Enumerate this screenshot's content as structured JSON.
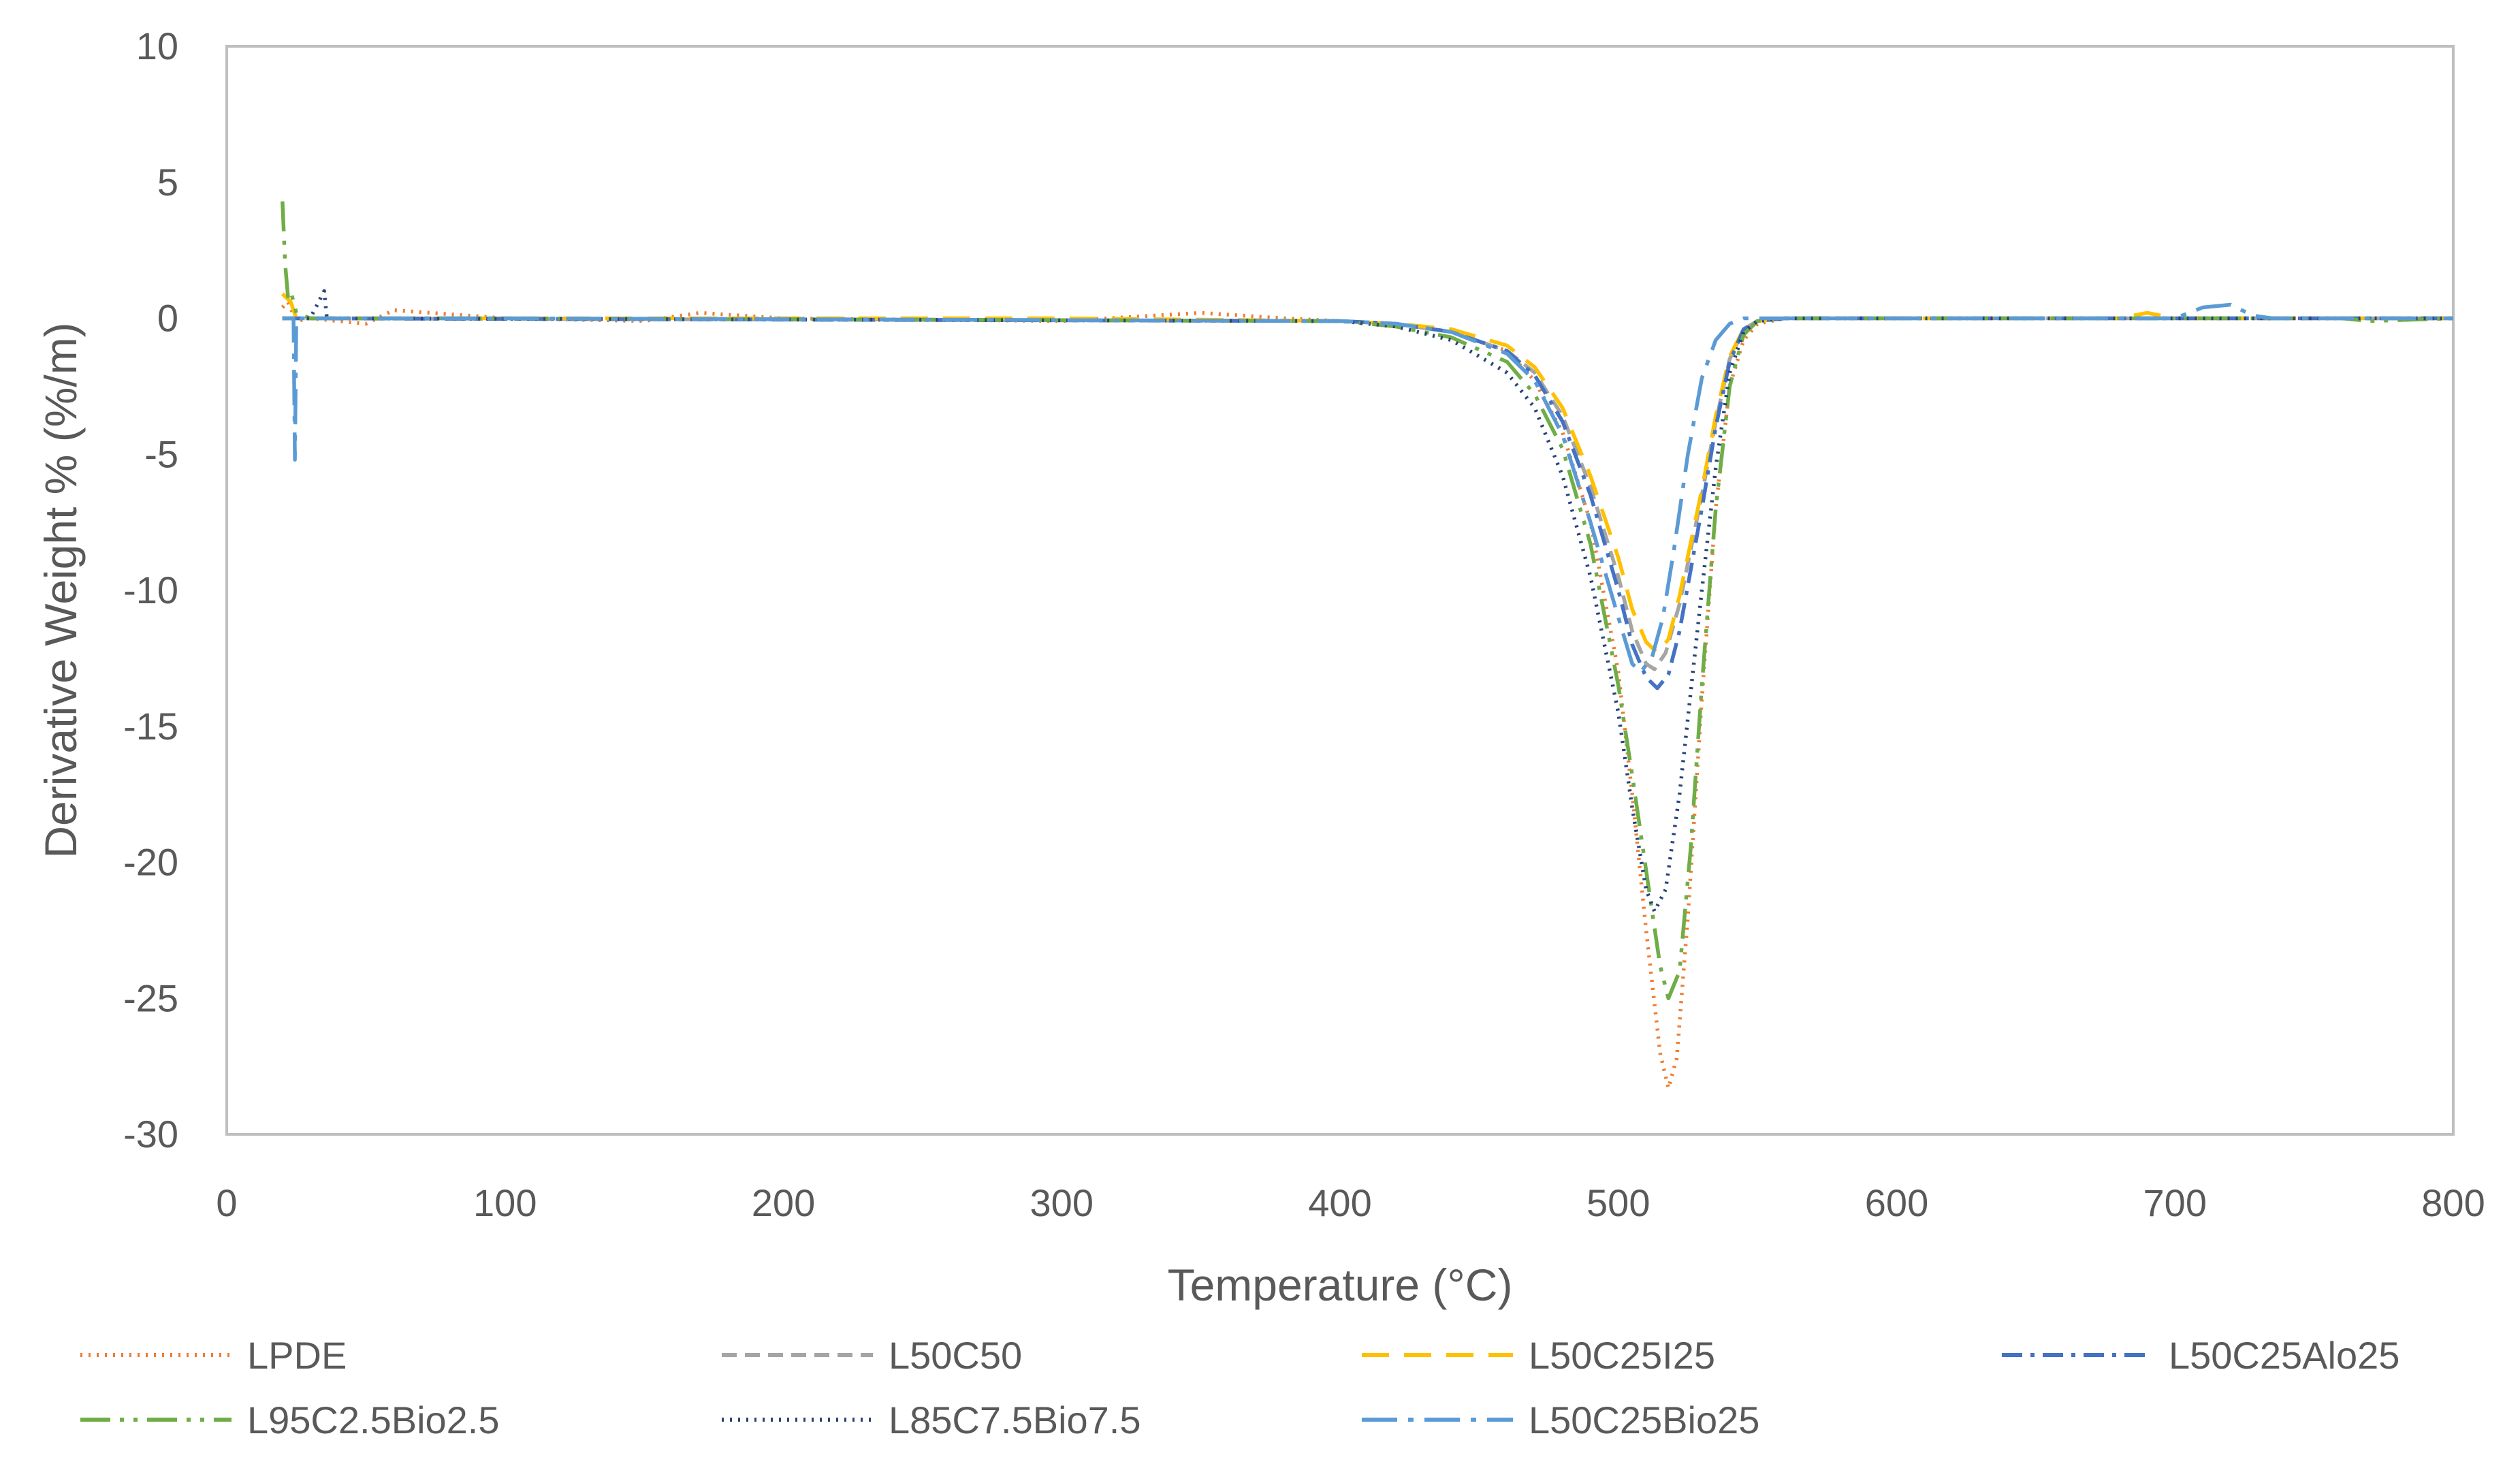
{
  "chart_data": {
    "type": "line",
    "title": "",
    "xlabel": "Temperature (°C)",
    "ylabel": "Derivative Weight % (%/m)",
    "xlim": [
      0,
      800
    ],
    "ylim": [
      -30,
      10
    ],
    "x_ticks": [
      0,
      100,
      200,
      300,
      400,
      500,
      600,
      700,
      800
    ],
    "y_ticks": [
      10,
      5,
      0,
      -5,
      -10,
      -15,
      -20,
      -25,
      -30
    ],
    "grid": false,
    "legend_position": "bottom",
    "series": [
      {
        "name": "LPDE",
        "color": "#ED7D31",
        "dash": "dotted",
        "points": [
          [
            20,
            0.4
          ],
          [
            22,
            0.6
          ],
          [
            25,
            -0.1
          ],
          [
            30,
            0
          ],
          [
            50,
            -0.2
          ],
          [
            60,
            0.3
          ],
          [
            100,
            0
          ],
          [
            150,
            -0.1
          ],
          [
            170,
            0.2
          ],
          [
            200,
            0
          ],
          [
            300,
            -0.1
          ],
          [
            350,
            0.2
          ],
          [
            380,
            0
          ],
          [
            400,
            -0.1
          ],
          [
            420,
            -0.2
          ],
          [
            440,
            -0.5
          ],
          [
            460,
            -1.2
          ],
          [
            470,
            -2.3
          ],
          [
            480,
            -4.2
          ],
          [
            490,
            -7.5
          ],
          [
            500,
            -13
          ],
          [
            505,
            -17.5
          ],
          [
            510,
            -22.5
          ],
          [
            515,
            -27
          ],
          [
            518,
            -28.3
          ],
          [
            521,
            -27.2
          ],
          [
            525,
            -22
          ],
          [
            530,
            -14
          ],
          [
            535,
            -7
          ],
          [
            540,
            -2.5
          ],
          [
            545,
            -0.8
          ],
          [
            550,
            -0.2
          ],
          [
            560,
            0
          ],
          [
            800,
            0
          ]
        ]
      },
      {
        "name": "L50C50",
        "color": "#A5A5A5",
        "dash": "dashed",
        "points": [
          [
            20,
            0
          ],
          [
            400,
            -0.1
          ],
          [
            420,
            -0.2
          ],
          [
            440,
            -0.5
          ],
          [
            460,
            -1.2
          ],
          [
            470,
            -2
          ],
          [
            480,
            -3.6
          ],
          [
            490,
            -6.2
          ],
          [
            500,
            -9.5
          ],
          [
            505,
            -11.5
          ],
          [
            510,
            -12.7
          ],
          [
            513,
            -12.9
          ],
          [
            517,
            -12.3
          ],
          [
            522,
            -10.5
          ],
          [
            530,
            -6.5
          ],
          [
            535,
            -3.8
          ],
          [
            540,
            -1.5
          ],
          [
            545,
            -0.4
          ],
          [
            550,
            -0.1
          ],
          [
            560,
            0
          ],
          [
            800,
            0
          ]
        ]
      },
      {
        "name": "L50C25I25",
        "color": "#FFC000",
        "dash": "long-dash",
        "points": [
          [
            20,
            0.9
          ],
          [
            23,
            0.6
          ],
          [
            25,
            0
          ],
          [
            100,
            0
          ],
          [
            300,
            0
          ],
          [
            400,
            -0.1
          ],
          [
            420,
            -0.2
          ],
          [
            440,
            -0.4
          ],
          [
            460,
            -1
          ],
          [
            470,
            -1.8
          ],
          [
            480,
            -3.3
          ],
          [
            490,
            -5.8
          ],
          [
            500,
            -8.8
          ],
          [
            505,
            -10.7
          ],
          [
            510,
            -11.9
          ],
          [
            514,
            -12.3
          ],
          [
            518,
            -11.8
          ],
          [
            522,
            -10.2
          ],
          [
            530,
            -6.3
          ],
          [
            535,
            -3.6
          ],
          [
            540,
            -1.4
          ],
          [
            545,
            -0.4
          ],
          [
            550,
            -0.1
          ],
          [
            560,
            0
          ],
          [
            680,
            0
          ],
          [
            690,
            0.2
          ],
          [
            700,
            0
          ],
          [
            800,
            0
          ]
        ]
      },
      {
        "name": "L50C25Alo25",
        "color": "#4472C4",
        "dash": "dash-dot",
        "points": [
          [
            20,
            0
          ],
          [
            400,
            -0.1
          ],
          [
            420,
            -0.2
          ],
          [
            440,
            -0.5
          ],
          [
            460,
            -1.2
          ],
          [
            470,
            -2.1
          ],
          [
            480,
            -3.8
          ],
          [
            490,
            -6.5
          ],
          [
            500,
            -10
          ],
          [
            505,
            -12
          ],
          [
            510,
            -13.2
          ],
          [
            514,
            -13.6
          ],
          [
            518,
            -13.1
          ],
          [
            522,
            -11.5
          ],
          [
            530,
            -7
          ],
          [
            535,
            -4
          ],
          [
            540,
            -1.6
          ],
          [
            545,
            -0.4
          ],
          [
            550,
            -0.1
          ],
          [
            560,
            0
          ],
          [
            800,
            0
          ]
        ]
      },
      {
        "name": "L95C2.5Bio2.5",
        "color": "#70AD47",
        "dash": "dash-dot-dot",
        "points": [
          [
            20,
            4.3
          ],
          [
            21,
            2
          ],
          [
            22,
            0.8
          ],
          [
            23,
            1
          ],
          [
            25,
            0.2
          ],
          [
            30,
            0
          ],
          [
            100,
            0
          ],
          [
            400,
            -0.1
          ],
          [
            420,
            -0.3
          ],
          [
            440,
            -0.7
          ],
          [
            460,
            -1.6
          ],
          [
            470,
            -2.8
          ],
          [
            480,
            -4.8
          ],
          [
            490,
            -8.3
          ],
          [
            500,
            -13.5
          ],
          [
            505,
            -16.8
          ],
          [
            510,
            -20.3
          ],
          [
            515,
            -23.8
          ],
          [
            518,
            -25
          ],
          [
            522,
            -24
          ],
          [
            526,
            -19.5
          ],
          [
            530,
            -13.5
          ],
          [
            535,
            -7
          ],
          [
            540,
            -2.5
          ],
          [
            545,
            -0.6
          ],
          [
            550,
            -0.1
          ],
          [
            560,
            0
          ],
          [
            760,
            0
          ],
          [
            770,
            -0.1
          ],
          [
            800,
            0
          ]
        ]
      },
      {
        "name": "L85C7.5Bio7.5",
        "color": "#264478",
        "dash": "dotted",
        "points": [
          [
            20,
            0
          ],
          [
            30,
            0
          ],
          [
            35,
            1
          ],
          [
            36,
            0
          ],
          [
            40,
            0
          ],
          [
            400,
            -0.1
          ],
          [
            420,
            -0.3
          ],
          [
            440,
            -0.8
          ],
          [
            460,
            -2
          ],
          [
            470,
            -3.3
          ],
          [
            480,
            -5.8
          ],
          [
            490,
            -9.5
          ],
          [
            500,
            -14.5
          ],
          [
            505,
            -18
          ],
          [
            510,
            -21
          ],
          [
            513,
            -21.8
          ],
          [
            517,
            -21
          ],
          [
            522,
            -17.5
          ],
          [
            530,
            -10
          ],
          [
            535,
            -5.5
          ],
          [
            540,
            -2
          ],
          [
            545,
            -0.5
          ],
          [
            550,
            -0.1
          ],
          [
            560,
            0
          ],
          [
            800,
            0
          ]
        ]
      },
      {
        "name": "L50C25Bio25",
        "color": "#5B9BD5",
        "dash": "long-dash-dot",
        "points": [
          [
            20,
            0
          ],
          [
            24,
            0
          ],
          [
            24.5,
            -5.2
          ],
          [
            25,
            0
          ],
          [
            100,
            0
          ],
          [
            400,
            -0.1
          ],
          [
            420,
            -0.2
          ],
          [
            440,
            -0.5
          ],
          [
            460,
            -1.3
          ],
          [
            470,
            -2.3
          ],
          [
            480,
            -4.3
          ],
          [
            490,
            -7.5
          ],
          [
            500,
            -11
          ],
          [
            505,
            -12.7
          ],
          [
            508,
            -13
          ],
          [
            512,
            -12.5
          ],
          [
            516,
            -11
          ],
          [
            520,
            -8.5
          ],
          [
            525,
            -5
          ],
          [
            530,
            -2.2
          ],
          [
            535,
            -0.8
          ],
          [
            540,
            -0.2
          ],
          [
            545,
            0
          ],
          [
            700,
            0
          ],
          [
            710,
            0.4
          ],
          [
            720,
            0.5
          ],
          [
            728,
            0.1
          ],
          [
            735,
            0
          ],
          [
            800,
            0
          ]
        ]
      }
    ]
  }
}
